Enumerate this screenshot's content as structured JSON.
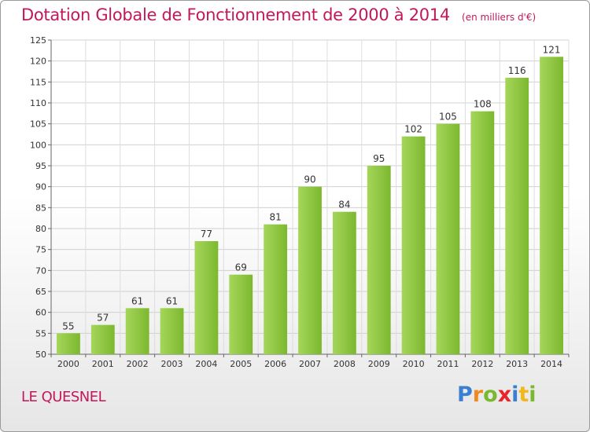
{
  "chart_data": {
    "type": "bar",
    "title": "Dotation Globale de Fonctionnement de 2000 à 2014",
    "unit": "(en milliers d'€)",
    "categories": [
      "2000",
      "2001",
      "2002",
      "2003",
      "2004",
      "2005",
      "2006",
      "2007",
      "2008",
      "2009",
      "2010",
      "2011",
      "2012",
      "2013",
      "2014"
    ],
    "values": [
      55,
      57,
      61,
      61,
      77,
      69,
      81,
      90,
      84,
      95,
      102,
      105,
      108,
      116,
      121
    ],
    "ylim": [
      50,
      125
    ],
    "yticks": [
      50,
      55,
      60,
      65,
      70,
      75,
      80,
      85,
      90,
      95,
      100,
      105,
      110,
      115,
      120,
      125
    ],
    "grid": true,
    "bar_color": "#7cb82f",
    "bar_color_light": "#a5d65a",
    "title_color": "#c2185b"
  },
  "footer": {
    "commune": "LE QUESNEL",
    "logo_letters": [
      {
        "ch": "P",
        "color": "#3a7fd0"
      },
      {
        "ch": "r",
        "color": "#f08a1c"
      },
      {
        "ch": "o",
        "color": "#7ab92e"
      },
      {
        "ch": "x",
        "color": "#e8262a"
      },
      {
        "ch": "i",
        "color": "#3a7fd0"
      },
      {
        "ch": "t",
        "color": "#f0b81c"
      },
      {
        "ch": "i",
        "color": "#7ab92e"
      }
    ]
  }
}
